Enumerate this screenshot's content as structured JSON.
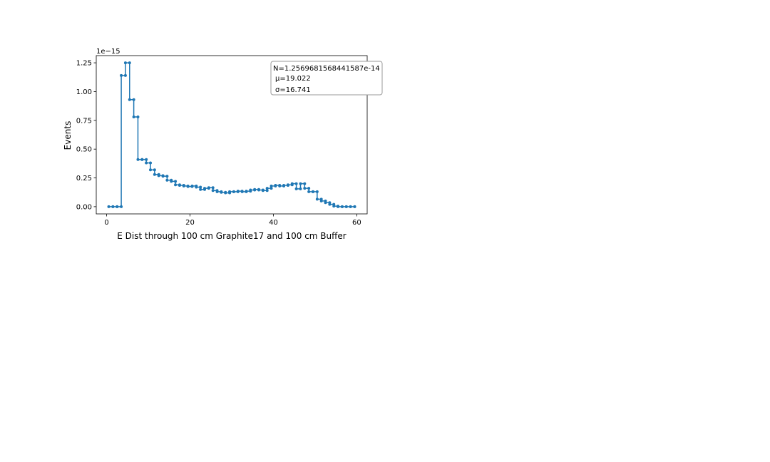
{
  "chart_data": {
    "type": "line",
    "drawstyle": "steps",
    "marker": "point",
    "xlabel": "E Dist through 100 cm Graphite17 and 100 cm Buffer",
    "ylabel": "Events",
    "offset_label": "1e−15",
    "xlim": [
      -2.5,
      62.5
    ],
    "ylim": [
      -0.0625,
      1.3125
    ],
    "scale_factor": 1e-15,
    "x_ticks": [
      0,
      20,
      40,
      60
    ],
    "x_tick_labels": [
      "0",
      "20",
      "40",
      "60"
    ],
    "y_ticks": [
      0.0,
      0.25,
      0.5,
      0.75,
      1.0,
      1.25
    ],
    "y_tick_labels": [
      "0.00",
      "0.25",
      "0.50",
      "0.75",
      "1.00",
      "1.25"
    ],
    "grid": false,
    "color": "#1f77b4",
    "series": [
      {
        "x": [
          0.5,
          1.5,
          2.5,
          3.5,
          4.5,
          5.5,
          6.5,
          7.5,
          8.5,
          9.5,
          10.5,
          11.5,
          12.5,
          13.5,
          14.5,
          15.5,
          16.5,
          17.5,
          18.5,
          19.5,
          20.5,
          21.5,
          22.5,
          23.5,
          24.5,
          25.5,
          26.5,
          27.5,
          28.5,
          29.5,
          30.5,
          31.5,
          32.5,
          33.5,
          34.5,
          35.5,
          36.5,
          37.5,
          38.5,
          39.5,
          40.5,
          41.5,
          42.5,
          43.5,
          44.5,
          45.5,
          46.5,
          47.5,
          48.5,
          49.5,
          50.5,
          51.5,
          52.5,
          53.5,
          54.5,
          55.5,
          56.5,
          57.5,
          58.5,
          59.5
        ],
        "y": [
          0.0,
          0.0,
          0.0,
          1.14,
          1.25,
          0.93,
          0.78,
          0.41,
          0.41,
          0.38,
          0.32,
          0.28,
          0.27,
          0.265,
          0.23,
          0.22,
          0.19,
          0.185,
          0.18,
          0.175,
          0.18,
          0.17,
          0.15,
          0.16,
          0.165,
          0.14,
          0.13,
          0.125,
          0.12,
          0.13,
          0.13,
          0.135,
          0.13,
          0.135,
          0.145,
          0.15,
          0.145,
          0.14,
          0.16,
          0.18,
          0.185,
          0.18,
          0.185,
          0.19,
          0.2,
          0.155,
          0.2,
          0.16,
          0.13,
          0.13,
          0.065,
          0.05,
          0.035,
          0.02,
          0.005,
          0.0,
          0.0,
          0.0,
          0.0,
          0.0
        ]
      }
    ],
    "stats_box": {
      "position": "top-right",
      "lines": [
        "N=1.2569681568441587e-14",
        "μ=19.022",
        "σ=16.741"
      ]
    }
  }
}
